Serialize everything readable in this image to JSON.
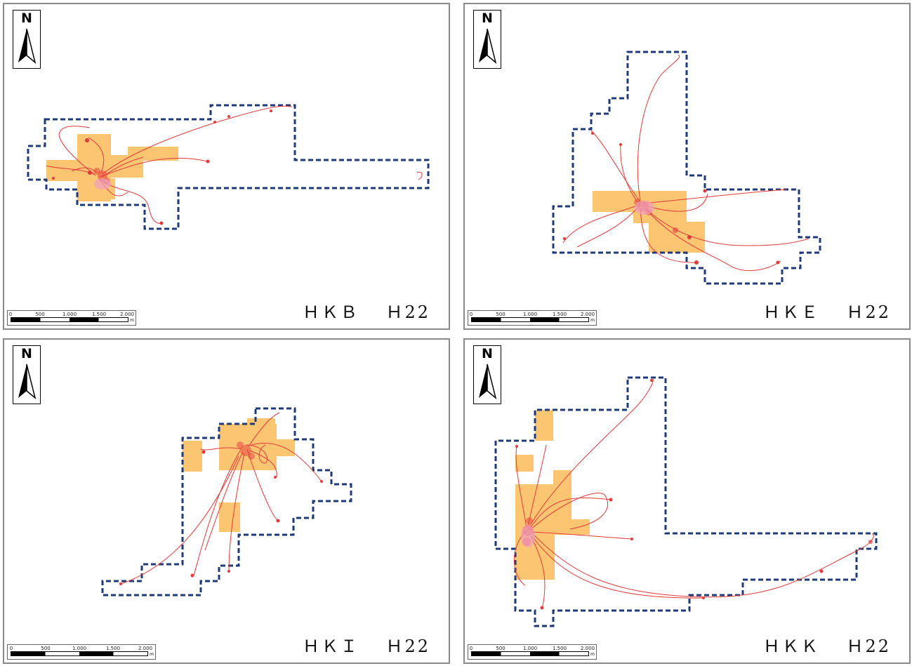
{
  "north_letter": "N",
  "scale_ticks": [
    "0",
    "500",
    "1.000",
    "1.500",
    "2.000"
  ],
  "scale_unit": "m",
  "colors": {
    "boundary": "#1f3a7a",
    "area_fill": "#fbc572",
    "track": "#e33a3a",
    "frame": "#8a8a8a"
  },
  "panels": [
    {
      "id": "hkb",
      "label": "ＨＫＢ　 Ｈ22"
    },
    {
      "id": "hke",
      "label": "ＨＫＥ　 Ｈ22"
    },
    {
      "id": "hki",
      "label": "ＨＫＩ　 Ｈ22"
    },
    {
      "id": "hkk",
      "label": "ＨＫＫ　 Ｈ22"
    }
  ]
}
